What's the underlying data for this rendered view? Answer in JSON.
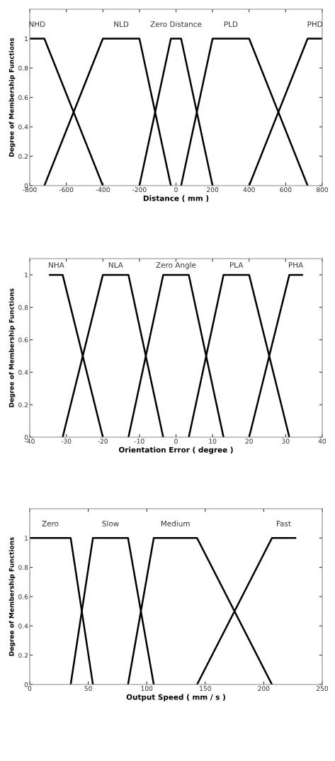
{
  "chart_data": [
    {
      "type": "line",
      "xlabel": "Distance ( mm )",
      "ylabel": "Degree of Membership Functions",
      "xlim": [
        -800,
        800
      ],
      "xticks": [
        -800,
        -600,
        -400,
        -200,
        0,
        200,
        400,
        600,
        800
      ],
      "ylim": [
        0,
        1.2
      ],
      "yticks": [
        0,
        0.2,
        0.4,
        0.6,
        0.8,
        1
      ],
      "grid": false,
      "legend": false,
      "marker": "none",
      "line_style": "solid",
      "series": [
        {
          "name": "NHD",
          "color": "#000000",
          "x": [
            -800,
            -720,
            -400
          ],
          "values": [
            1,
            1,
            0
          ]
        },
        {
          "name": "NLD",
          "color": "#000000",
          "x": [
            -720,
            -400,
            -200,
            -28
          ],
          "values": [
            0,
            1,
            1,
            0
          ]
        },
        {
          "name": "Zero Distance",
          "color": "#000000",
          "x": [
            -200,
            -28,
            28,
            200
          ],
          "values": [
            0,
            1,
            1,
            0
          ]
        },
        {
          "name": "PLD",
          "color": "#000000",
          "x": [
            28,
            200,
            400,
            720
          ],
          "values": [
            0,
            1,
            1,
            0
          ]
        },
        {
          "name": "PHD",
          "color": "#000000",
          "x": [
            400,
            720,
            800
          ],
          "values": [
            0,
            1,
            1
          ]
        }
      ]
    },
    {
      "type": "line",
      "xlabel": "Orientation Error ( degree )",
      "ylabel": "Degree of Membership Functions",
      "xlim": [
        -40,
        40
      ],
      "xticks": [
        -40,
        -30,
        -20,
        -10,
        0,
        10,
        20,
        30,
        40
      ],
      "ylim": [
        0,
        1.1
      ],
      "yticks": [
        0,
        0.2,
        0.4,
        0.6,
        0.8,
        1
      ],
      "grid": false,
      "legend": false,
      "marker": "none",
      "line_style": "solid",
      "series": [
        {
          "name": "NHA",
          "color": "#000000",
          "x": [
            -34.5,
            -31,
            -20
          ],
          "values": [
            1,
            1,
            0
          ]
        },
        {
          "name": "NLA",
          "color": "#000000",
          "x": [
            -31,
            -20,
            -13,
            -3.5
          ],
          "values": [
            0,
            1,
            1,
            0
          ]
        },
        {
          "name": "Zero Angle",
          "color": "#000000",
          "x": [
            -13,
            -3.5,
            3.5,
            13
          ],
          "values": [
            0,
            1,
            1,
            0
          ]
        },
        {
          "name": "PLA",
          "color": "#000000",
          "x": [
            3.5,
            13,
            20,
            31
          ],
          "values": [
            0,
            1,
            1,
            0
          ]
        },
        {
          "name": "PHA",
          "color": "#000000",
          "x": [
            20,
            31,
            34.5
          ],
          "values": [
            0,
            1,
            1
          ]
        }
      ]
    },
    {
      "type": "line",
      "xlabel": "Output Speed ( mm / s )",
      "ylabel": "Degree of Membership Functions",
      "xlim": [
        0,
        250
      ],
      "xticks": [
        0,
        50,
        100,
        150,
        200,
        250
      ],
      "ylim": [
        0,
        1.2
      ],
      "yticks": [
        0,
        0.2,
        0.4,
        0.6,
        0.8,
        1
      ],
      "grid": false,
      "legend": false,
      "marker": "none",
      "line_style": "solid",
      "series": [
        {
          "name": "Zero",
          "color": "#000000",
          "x": [
            0,
            35,
            54
          ],
          "values": [
            1,
            1,
            0
          ]
        },
        {
          "name": "Slow",
          "color": "#000000",
          "x": [
            35,
            54,
            84,
            106
          ],
          "values": [
            0,
            1,
            1,
            0
          ]
        },
        {
          "name": "Medium",
          "color": "#000000",
          "x": [
            84,
            106,
            143,
            207
          ],
          "values": [
            0,
            1,
            1,
            0
          ]
        },
        {
          "name": "Fast",
          "color": "#000000",
          "x": [
            143,
            207,
            227
          ],
          "values": [
            0,
            1,
            1
          ]
        }
      ]
    }
  ]
}
